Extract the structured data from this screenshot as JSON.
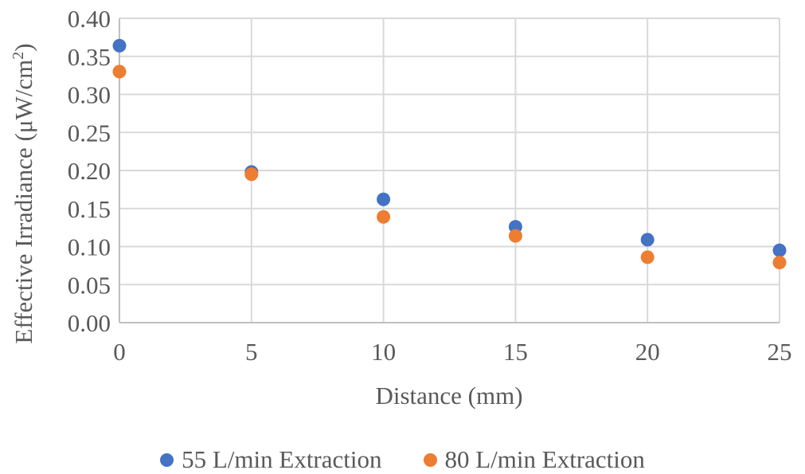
{
  "chart_data": {
    "type": "scatter",
    "title": "",
    "xlabel": "Distance (mm)",
    "ylabel_prefix": "Effective Irradiance (μW/cm",
    "ylabel_sup": "2",
    "ylabel_suffix": ")",
    "xlim": [
      0,
      25
    ],
    "ylim": [
      0,
      0.4
    ],
    "x_ticks": [
      "0",
      "5",
      "10",
      "15",
      "20",
      "25"
    ],
    "y_ticks": [
      "0.00",
      "0.05",
      "0.10",
      "0.15",
      "0.20",
      "0.25",
      "0.30",
      "0.35",
      "0.40"
    ],
    "grid": true,
    "legend_position": "bottom",
    "series": [
      {
        "name": "55 L/min Extraction",
        "color": "#4472C4",
        "x": [
          0,
          5,
          10,
          15,
          20,
          25
        ],
        "y": [
          0.364,
          0.198,
          0.162,
          0.126,
          0.109,
          0.095
        ]
      },
      {
        "name": "80 L/min Extraction",
        "color": "#ED7D31",
        "x": [
          0,
          5,
          10,
          15,
          20,
          25
        ],
        "y": [
          0.33,
          0.195,
          0.139,
          0.114,
          0.086,
          0.079
        ]
      }
    ]
  }
}
